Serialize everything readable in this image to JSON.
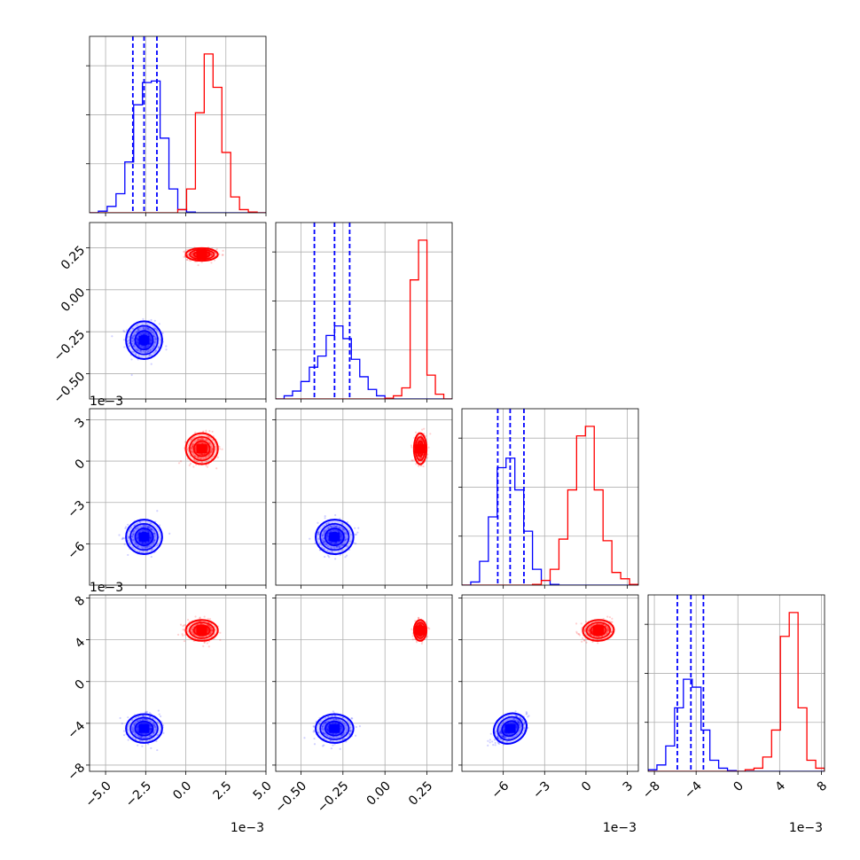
{
  "chart_data": {
    "type": "corner",
    "title": "",
    "colors": {
      "series_a": "#0000ff",
      "series_b": "#ff0000",
      "grid": "#b0b0b0"
    },
    "series": [
      {
        "color": "#0000ff",
        "center": [
          -2.6,
          -0.3,
          -5.5,
          -4.5
        ],
        "spread": [
          0.9,
          0.09,
          1.0,
          1.1
        ],
        "corr": {
          "2-3": 0.75
        }
      },
      {
        "color": "#ff0000",
        "center": [
          1.0,
          0.21,
          0.9,
          4.9
        ],
        "spread": [
          0.8,
          0.03,
          0.9,
          0.8
        ],
        "corr": {
          "2-3": 0.2
        }
      }
    ],
    "quantile_lines": [
      [
        -3.3,
        -2.6,
        -1.8
      ],
      [
        -0.42,
        -0.3,
        -0.21
      ],
      [
        -6.4,
        -5.5,
        -4.5
      ],
      [
        -5.8,
        -4.5,
        -3.3
      ]
    ],
    "axes": [
      {
        "range": [
          -6.0,
          5.0
        ],
        "ticks": [
          "-5.0",
          "-2.5",
          "0.0",
          "2.5",
          "5.0"
        ],
        "tick_values": [
          -5.0,
          -2.5,
          0.0,
          2.5,
          5.0
        ],
        "offset": "1e−3"
      },
      {
        "range": [
          -0.65,
          0.4
        ],
        "ticks": [
          "-0.50",
          "-0.25",
          "0.00",
          "0.25"
        ],
        "tick_values": [
          -0.5,
          -0.25,
          0.0,
          0.25
        ],
        "offset": ""
      },
      {
        "range": [
          -9.0,
          3.8
        ],
        "ticks": [
          "-6",
          "-3",
          "0",
          "3"
        ],
        "tick_values": [
          -6,
          -3,
          0,
          3
        ],
        "offset": "1e−3"
      },
      {
        "range": [
          -8.6,
          8.3
        ],
        "ticks": [
          "-8",
          "-4",
          "0",
          "4",
          "8"
        ],
        "tick_values": [
          -8,
          -4,
          0,
          4,
          8
        ],
        "offset": "1e−3"
      }
    ],
    "histograms": [
      {
        "edges": [
          -6.0,
          -5.45,
          -4.9,
          -4.35,
          -3.8,
          -3.25,
          -2.7,
          -2.15,
          -1.6,
          -1.05,
          -0.5,
          0.05,
          0.6,
          1.15,
          1.7,
          2.25,
          2.8,
          3.35,
          3.9,
          4.45,
          5.0
        ],
        "series_a": [
          0,
          0.01,
          0.04,
          0.12,
          0.32,
          0.68,
          0.82,
          0.83,
          0.47,
          0.15,
          0.02,
          0.005,
          0,
          0,
          0,
          0,
          0,
          0,
          0,
          0
        ],
        "series_b": [
          0,
          0,
          0,
          0,
          0,
          0,
          0,
          0,
          0,
          0,
          0.02,
          0.15,
          0.63,
          1.0,
          0.79,
          0.38,
          0.1,
          0.02,
          0.005,
          0
        ]
      },
      {
        "edges": [
          -0.65,
          -0.6,
          -0.55,
          -0.5,
          -0.45,
          -0.4,
          -0.35,
          -0.3,
          -0.25,
          -0.2,
          -0.15,
          -0.1,
          -0.05,
          0.0,
          0.05,
          0.1,
          0.15,
          0.2,
          0.25,
          0.3,
          0.35,
          0.4
        ],
        "series_a": [
          0,
          0.02,
          0.05,
          0.11,
          0.2,
          0.27,
          0.4,
          0.46,
          0.38,
          0.25,
          0.14,
          0.06,
          0.02,
          0.005,
          0,
          0,
          0,
          0,
          0,
          0,
          0
        ],
        "series_b": [
          0,
          0,
          0,
          0,
          0,
          0,
          0,
          0,
          0,
          0,
          0,
          0,
          0,
          0.005,
          0.02,
          0.07,
          0.75,
          1.0,
          0.15,
          0.03,
          0
        ]
      },
      {
        "edges": [
          -9.0,
          -8.36,
          -7.72,
          -7.08,
          -6.44,
          -5.8,
          -5.16,
          -4.52,
          -3.88,
          -3.24,
          -2.6,
          -1.96,
          -1.32,
          -0.68,
          -0.04,
          0.6,
          1.24,
          1.88,
          2.52,
          3.16,
          3.8
        ],
        "series_a": [
          0,
          0.02,
          0.15,
          0.43,
          0.74,
          0.8,
          0.6,
          0.34,
          0.1,
          0.03,
          0.005,
          0,
          0,
          0,
          0,
          0,
          0,
          0,
          0,
          0
        ],
        "series_b": [
          0,
          0,
          0,
          0,
          0,
          0,
          0,
          0,
          0.005,
          0.03,
          0.1,
          0.29,
          0.6,
          0.94,
          1.0,
          0.6,
          0.28,
          0.08,
          0.04,
          0.005
        ]
      },
      {
        "edges": [
          -8.6,
          -7.755,
          -6.91,
          -6.065,
          -5.22,
          -4.375,
          -3.53,
          -2.685,
          -1.84,
          -0.995,
          -0.15,
          0.695,
          1.54,
          2.385,
          3.23,
          4.075,
          4.92,
          5.765,
          6.61,
          7.455,
          8.3
        ],
        "series_a": [
          0.01,
          0.04,
          0.16,
          0.4,
          0.58,
          0.53,
          0.26,
          0.07,
          0.02,
          0.005,
          0,
          0,
          0,
          0,
          0,
          0,
          0,
          0,
          0,
          0
        ],
        "series_b": [
          0,
          0,
          0,
          0,
          0,
          0,
          0,
          0,
          0,
          0,
          0,
          0.01,
          0.02,
          0.09,
          0.26,
          0.85,
          1.0,
          0.4,
          0.07,
          0.02
        ]
      }
    ]
  }
}
